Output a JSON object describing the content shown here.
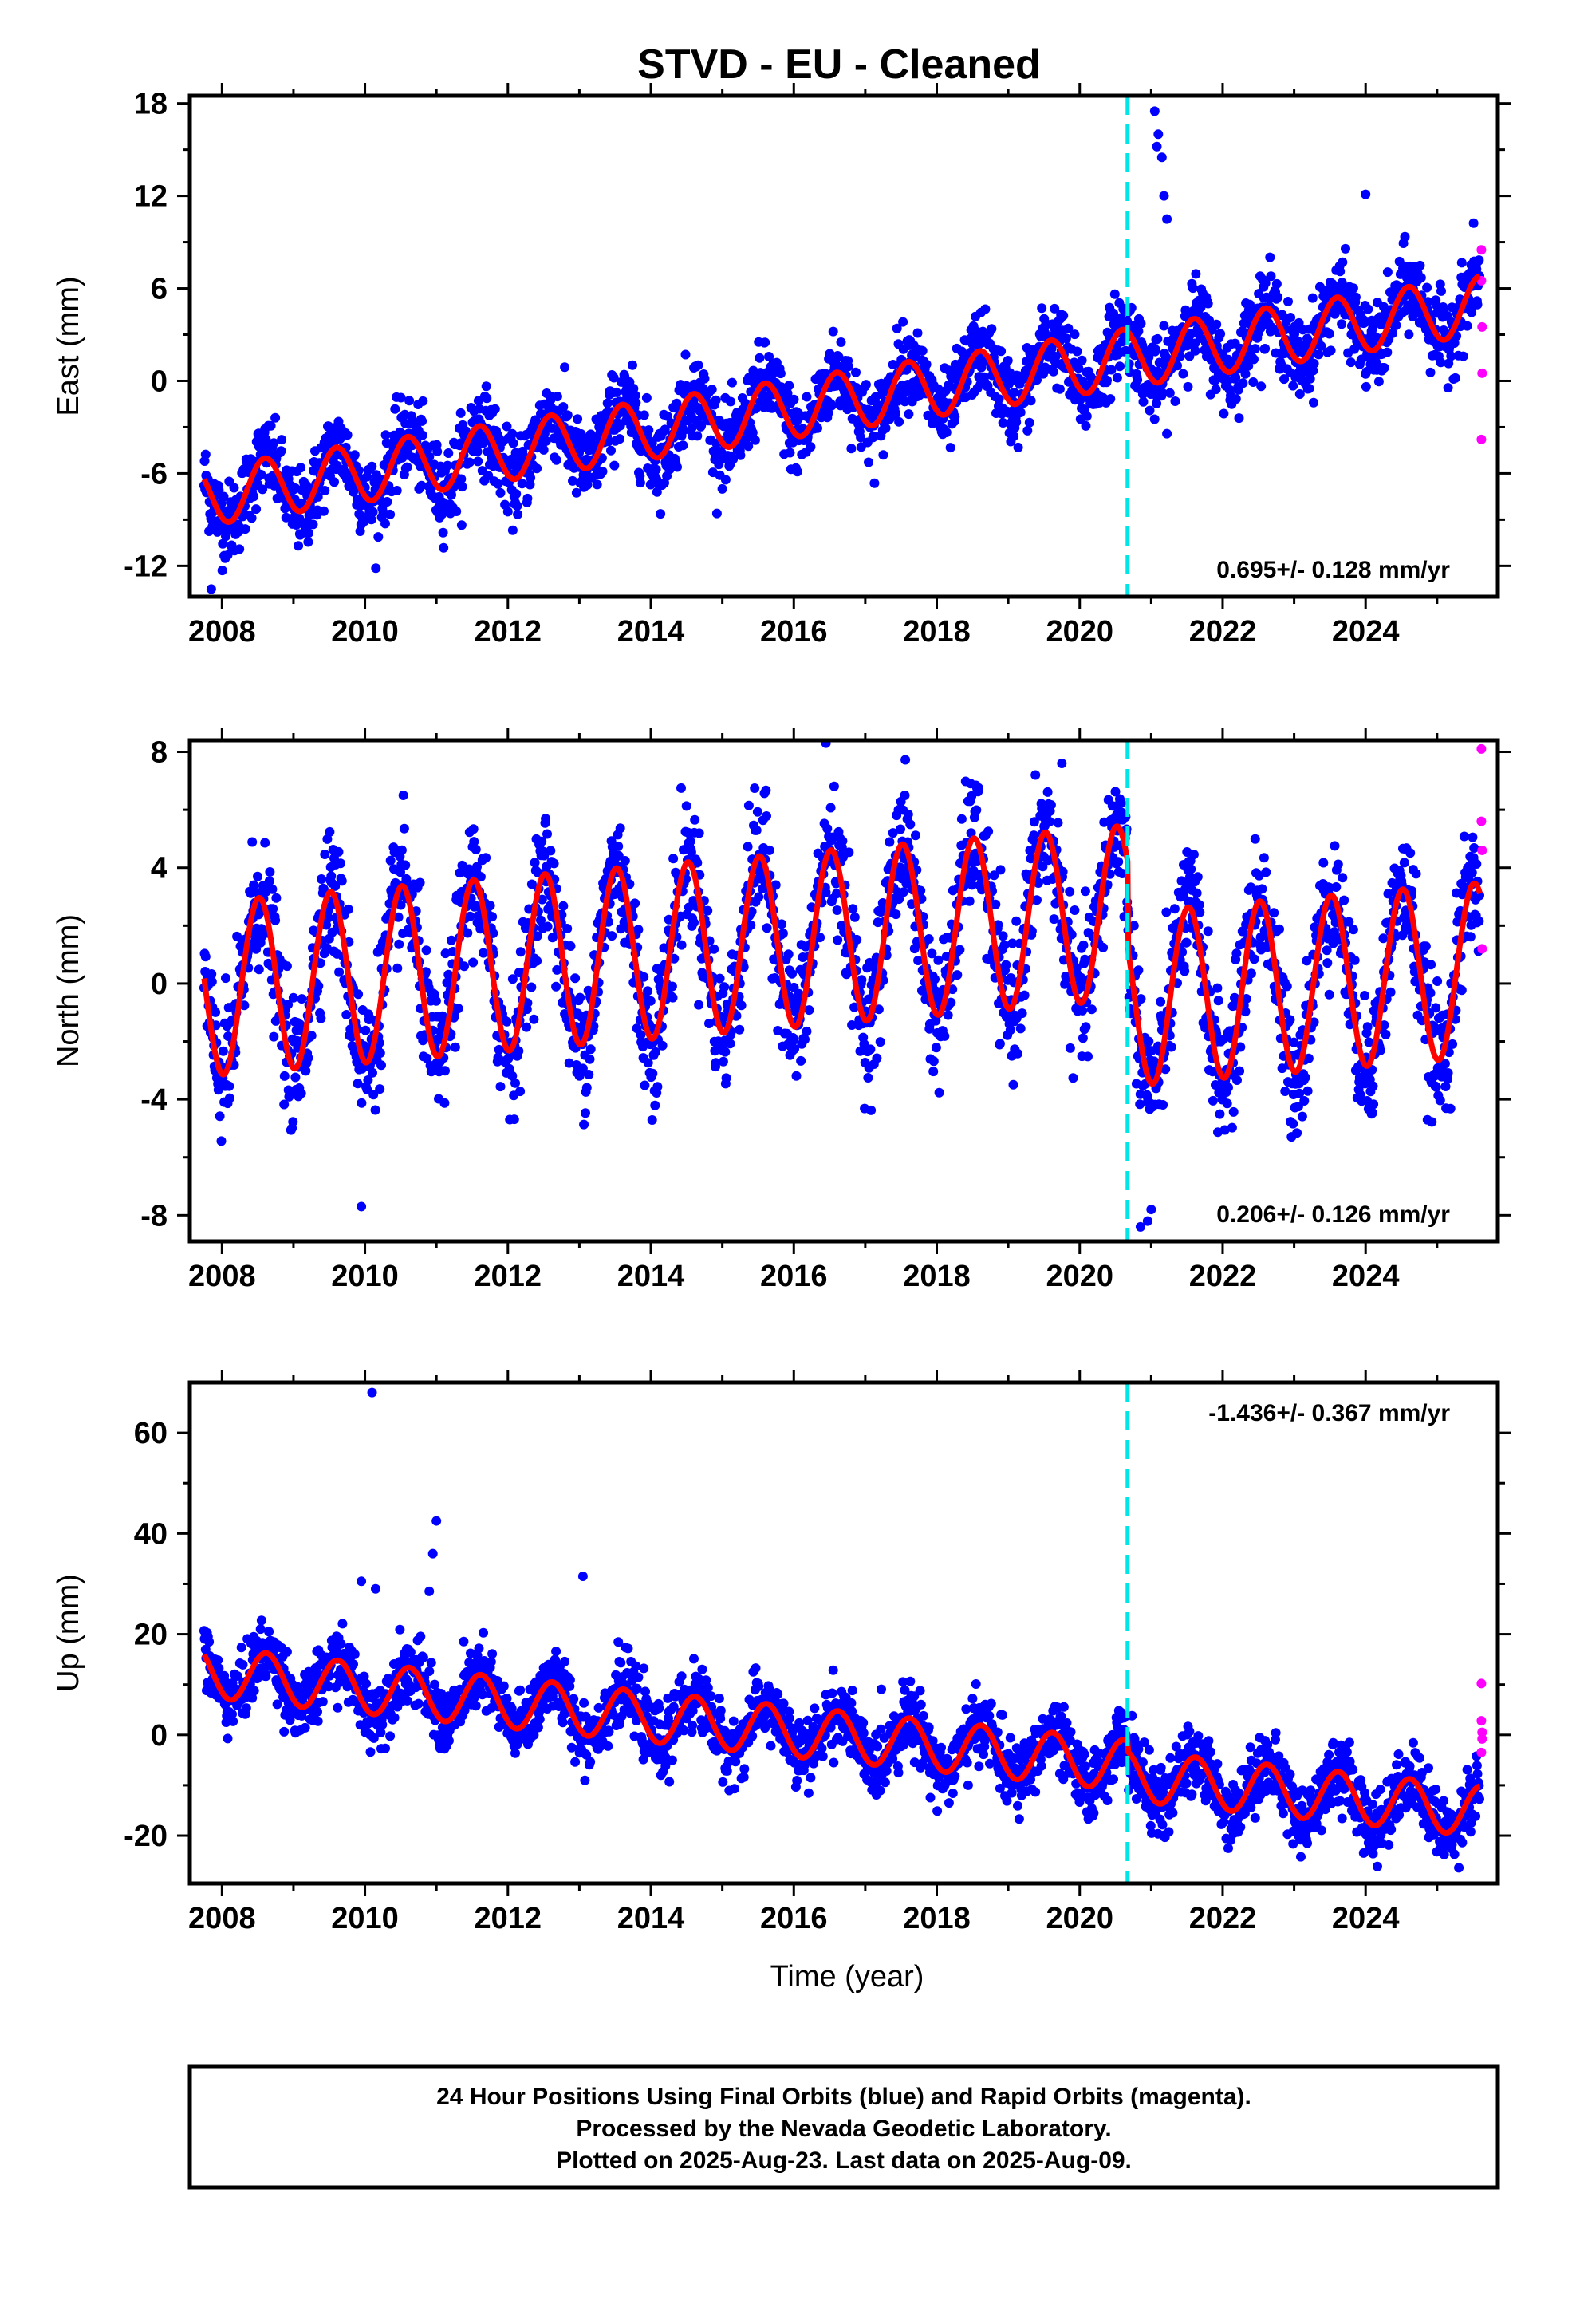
{
  "title": "STVD  - EU - Cleaned",
  "xlabel": "Time (year)",
  "colors": {
    "final_orbits": "#0000ff",
    "rapid_orbits": "#ff00ff",
    "model_fit": "#ff0000",
    "equipment_change": "#00e5e5"
  },
  "footer": [
    "24 Hour Positions Using Final Orbits (blue) and Rapid Orbits (magenta).",
    "Processed by the Nevada Geodetic Laboratory.",
    "Plotted on 2025-Aug-23. Last data on 2025-Aug-09."
  ],
  "chart_data": [
    {
      "type": "scatter",
      "component": "East",
      "ylabel": "East (mm)",
      "xlim": [
        2007.55,
        2025.85
      ],
      "ylim": [
        -14.0,
        18.5
      ],
      "xticks": [
        2008,
        2010,
        2012,
        2014,
        2016,
        2018,
        2020,
        2022,
        2024
      ],
      "yticks": [
        -12,
        -6,
        0,
        6,
        12,
        18
      ],
      "grid": false,
      "rate_label": "0.695+/- 0.128 mm/yr",
      "rate_position": "bottom-right",
      "equipment_change_epoch": 2020.67,
      "data_span": [
        2007.75,
        2025.6
      ],
      "model": {
        "start": -7.5,
        "trend_mm_per_yr": 0.695,
        "annual_amplitude": 1.9,
        "annual_phase_peak": 0.6,
        "offset_at_break": 0.0
      },
      "final_orbit_scatter_mm": 1.3,
      "outliers": [
        {
          "x": 2021.05,
          "y": 17.5
        },
        {
          "x": 2021.1,
          "y": 16.0
        },
        {
          "x": 2021.15,
          "y": 14.5
        },
        {
          "x": 2021.18,
          "y": 12.0
        },
        {
          "x": 2021.22,
          "y": 10.5
        },
        {
          "x": 2021.08,
          "y": 15.2
        },
        {
          "x": 2024.0,
          "y": 12.1
        },
        {
          "x": 2007.85,
          "y": -13.5
        }
      ],
      "rapid_orbits": [
        {
          "x": 2025.62,
          "y": 8.5
        },
        {
          "x": 2025.62,
          "y": 6.5
        },
        {
          "x": 2025.63,
          "y": 3.5
        },
        {
          "x": 2025.63,
          "y": 0.5
        },
        {
          "x": 2025.62,
          "y": -3.8
        }
      ]
    },
    {
      "type": "scatter",
      "component": "North",
      "ylabel": "North (mm)",
      "xlim": [
        2007.55,
        2025.85
      ],
      "ylim": [
        -8.9,
        8.4
      ],
      "xticks": [
        2008,
        2010,
        2012,
        2014,
        2016,
        2018,
        2020,
        2022,
        2024
      ],
      "yticks": [
        -8,
        -4,
        0,
        4,
        8
      ],
      "grid": false,
      "rate_label": "0.206+/- 0.126 mm/yr",
      "rate_position": "bottom-right",
      "equipment_change_epoch": 2020.67,
      "data_span": [
        2007.75,
        2025.6
      ],
      "model": {
        "start": -0.2,
        "trend_mm_per_yr": 0.206,
        "annual_amplitude": 3.0,
        "annual_phase_peak": 0.52,
        "offset_at_break": -3.0
      },
      "final_orbit_scatter_mm": 1.1,
      "outliers": [
        {
          "x": 2016.45,
          "y": 8.3
        },
        {
          "x": 2009.95,
          "y": -7.7
        },
        {
          "x": 2020.85,
          "y": -8.4
        },
        {
          "x": 2020.95,
          "y": -8.2
        },
        {
          "x": 2021.0,
          "y": -7.8
        },
        {
          "x": 2019.75,
          "y": 7.6
        }
      ],
      "rapid_orbits": [
        {
          "x": 2025.62,
          "y": 8.1
        },
        {
          "x": 2025.62,
          "y": 5.6
        },
        {
          "x": 2025.63,
          "y": 4.6
        },
        {
          "x": 2025.63,
          "y": 1.2
        }
      ]
    },
    {
      "type": "scatter",
      "component": "Up",
      "ylabel": "Up (mm)",
      "xlim": [
        2007.55,
        2025.85
      ],
      "ylim": [
        -29.5,
        70.0
      ],
      "xticks": [
        2008,
        2010,
        2012,
        2014,
        2016,
        2018,
        2020,
        2022,
        2024
      ],
      "yticks": [
        -20,
        0,
        20,
        40,
        60
      ],
      "grid": false,
      "rate_label": "-1.436+/- 0.367 mm/yr",
      "rate_position": "top-right",
      "equipment_change_epoch": 2020.67,
      "data_span": [
        2007.75,
        2025.6
      ],
      "model": {
        "start": 12.5,
        "trend_mm_per_yr": -1.436,
        "annual_amplitude": 5.0,
        "annual_phase_peak": 0.62,
        "offset_at_break": -2.0
      },
      "final_orbit_scatter_mm": 3.3,
      "outliers": [
        {
          "x": 2010.1,
          "y": 68.0
        },
        {
          "x": 2011.0,
          "y": 42.5
        },
        {
          "x": 2010.95,
          "y": 36.0
        },
        {
          "x": 2013.05,
          "y": 31.5
        },
        {
          "x": 2010.15,
          "y": 29.0
        },
        {
          "x": 2009.95,
          "y": 30.5
        },
        {
          "x": 2010.9,
          "y": 28.5
        }
      ],
      "rapid_orbits": [
        {
          "x": 2025.62,
          "y": 10.2
        },
        {
          "x": 2025.62,
          "y": 2.8
        },
        {
          "x": 2025.63,
          "y": 0.5
        },
        {
          "x": 2025.63,
          "y": -0.8
        },
        {
          "x": 2025.62,
          "y": -3.5
        }
      ]
    }
  ]
}
